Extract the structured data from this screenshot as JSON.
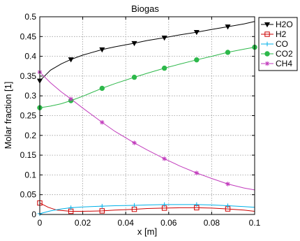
{
  "chart_data": {
    "type": "line",
    "title": "Biogas",
    "xlabel": "x [m]",
    "ylabel": "Molar fraction [1]",
    "xlim": [
      0,
      0.1
    ],
    "ylim": [
      0,
      0.5
    ],
    "xticks": [
      0,
      0.02,
      0.04,
      0.06,
      0.08,
      0.1
    ],
    "xtick_labels": [
      "0",
      "0.02",
      "0.04",
      "0.06",
      "0.08",
      "0.1"
    ],
    "yticks": [
      0,
      0.05,
      0.1,
      0.15,
      0.2,
      0.25,
      0.3,
      0.35,
      0.4,
      0.45,
      0.5
    ],
    "ytick_labels": [
      "0",
      "0.05",
      "0.1",
      "0.15",
      "0.2",
      "0.25",
      "0.3",
      "0.35",
      "0.4",
      "0.45",
      "0.5"
    ],
    "grid": true,
    "legend_position": "outside-top-right",
    "series": [
      {
        "name": "H2O",
        "color": "#000000",
        "marker": "triangle-down",
        "x": [
          0,
          0.005,
          0.01,
          0.0145,
          0.02,
          0.029,
          0.035,
          0.044,
          0.05,
          0.058,
          0.065,
          0.073,
          0.08,
          0.0875,
          0.095,
          0.1
        ],
        "y": [
          0.338,
          0.365,
          0.381,
          0.392,
          0.403,
          0.417,
          0.424,
          0.433,
          0.44,
          0.447,
          0.454,
          0.461,
          0.468,
          0.475,
          0.482,
          0.488
        ],
        "markers_x": [
          0,
          0.0145,
          0.029,
          0.044,
          0.058,
          0.073,
          0.0875
        ],
        "markers_y": [
          0.338,
          0.392,
          0.417,
          0.433,
          0.447,
          0.461,
          0.475
        ]
      },
      {
        "name": "H2",
        "color": "#cc0000",
        "marker": "square",
        "x": [
          0,
          0.004,
          0.008,
          0.0145,
          0.02,
          0.029,
          0.035,
          0.044,
          0.05,
          0.058,
          0.065,
          0.073,
          0.08,
          0.0875,
          0.095,
          0.1
        ],
        "y": [
          0.029,
          0.018,
          0.011,
          0.008,
          0.008,
          0.009,
          0.011,
          0.013,
          0.015,
          0.016,
          0.017,
          0.017,
          0.016,
          0.014,
          0.011,
          0.008
        ],
        "markers_x": [
          0,
          0.0145,
          0.029,
          0.044,
          0.058,
          0.073,
          0.0875
        ],
        "markers_y": [
          0.029,
          0.008,
          0.009,
          0.013,
          0.016,
          0.017,
          0.014
        ]
      },
      {
        "name": "CO",
        "color": "#00b0e8",
        "marker": "plus",
        "x": [
          0,
          0.005,
          0.01,
          0.0145,
          0.02,
          0.029,
          0.035,
          0.044,
          0.05,
          0.058,
          0.065,
          0.073,
          0.08,
          0.0875,
          0.095,
          0.1
        ],
        "y": [
          0.002,
          0.009,
          0.014,
          0.017,
          0.019,
          0.021,
          0.022,
          0.023,
          0.024,
          0.025,
          0.025,
          0.025,
          0.024,
          0.022,
          0.02,
          0.018
        ],
        "markers_x": [
          0,
          0.0145,
          0.029,
          0.044,
          0.058,
          0.073,
          0.0875
        ],
        "markers_y": [
          0.002,
          0.017,
          0.021,
          0.023,
          0.025,
          0.025,
          0.022
        ]
      },
      {
        "name": "CO2",
        "color": "#2db84a",
        "marker": "circle",
        "x": [
          0,
          0.005,
          0.01,
          0.0145,
          0.02,
          0.029,
          0.035,
          0.044,
          0.05,
          0.058,
          0.065,
          0.073,
          0.08,
          0.0875,
          0.095,
          0.1
        ],
        "y": [
          0.27,
          0.274,
          0.28,
          0.288,
          0.299,
          0.319,
          0.331,
          0.347,
          0.357,
          0.37,
          0.38,
          0.391,
          0.4,
          0.41,
          0.418,
          0.423
        ],
        "markers_x": [
          0,
          0.0145,
          0.029,
          0.044,
          0.058,
          0.073,
          0.0875,
          0.1
        ],
        "markers_y": [
          0.27,
          0.288,
          0.319,
          0.347,
          0.37,
          0.391,
          0.41,
          0.423
        ]
      },
      {
        "name": "CH4",
        "color": "#c23dbd",
        "marker": "asterisk",
        "x": [
          0,
          0.005,
          0.01,
          0.0145,
          0.02,
          0.029,
          0.035,
          0.044,
          0.05,
          0.058,
          0.065,
          0.073,
          0.08,
          0.0875,
          0.095,
          0.1
        ],
        "y": [
          0.36,
          0.333,
          0.31,
          0.292,
          0.269,
          0.233,
          0.21,
          0.181,
          0.163,
          0.141,
          0.123,
          0.105,
          0.091,
          0.077,
          0.067,
          0.062
        ],
        "markers_x": [
          0,
          0.0145,
          0.029,
          0.044,
          0.058,
          0.073,
          0.0875
        ],
        "markers_y": [
          0.36,
          0.292,
          0.233,
          0.181,
          0.141,
          0.105,
          0.077
        ]
      }
    ]
  }
}
